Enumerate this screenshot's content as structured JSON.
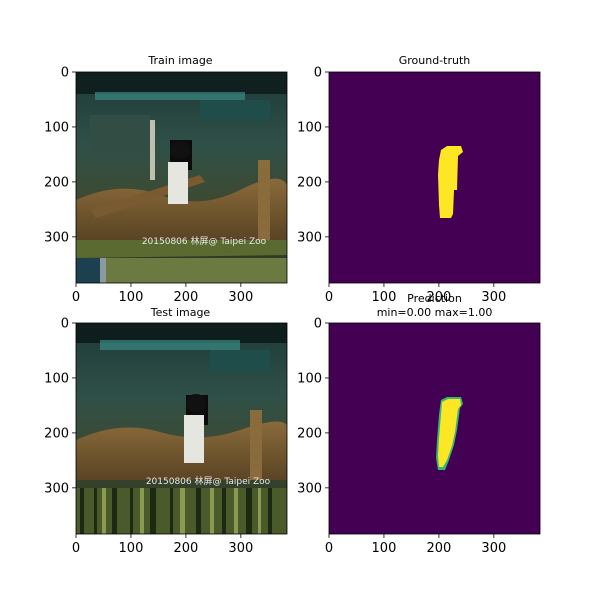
{
  "figure": {
    "panels": [
      {
        "id": "train",
        "title": "Train image",
        "subtitle": "",
        "image": "photo",
        "watermark": "20150806 林屏@ Taipei Zoo",
        "x_ticks": [
          "0",
          "100",
          "200",
          "300"
        ],
        "y_ticks": [
          "0",
          "100",
          "200",
          "300"
        ]
      },
      {
        "id": "gt",
        "title": "Ground-truth",
        "subtitle": "",
        "image": "mask",
        "x_ticks": [
          "0",
          "100",
          "200",
          "300"
        ],
        "y_ticks": [
          "0",
          "100",
          "200",
          "300"
        ]
      },
      {
        "id": "test",
        "title": "Test image",
        "subtitle": "",
        "image": "photo",
        "watermark": "20150806 林屏@ Taipei Zoo",
        "x_ticks": [
          "0",
          "100",
          "200",
          "300"
        ],
        "y_ticks": [
          "0",
          "100",
          "200",
          "300"
        ]
      },
      {
        "id": "pred",
        "title": "Prediction",
        "subtitle": "min=0.00 max=1.00",
        "image": "mask",
        "x_ticks": [
          "0",
          "100",
          "200",
          "300"
        ],
        "y_ticks": [
          "0",
          "100",
          "200",
          "300"
        ]
      }
    ],
    "colors": {
      "mask_background": "#440154",
      "mask_foreground": "#fde725",
      "mask_edge": "#35b779"
    }
  }
}
